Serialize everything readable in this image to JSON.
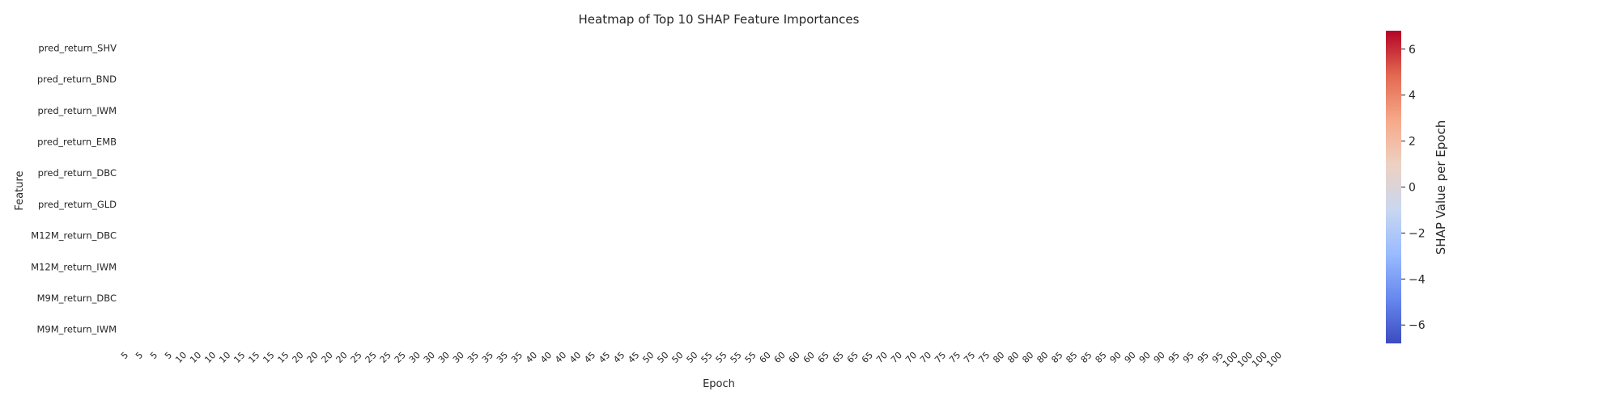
{
  "chart_data": {
    "type": "heatmap",
    "title": "Heatmap of Top 10 SHAP Feature Importances",
    "xlabel": "Epoch",
    "ylabel": "Feature",
    "features": [
      "pred_return_SHV",
      "pred_return_BND",
      "pred_return_IWM",
      "pred_return_EMB",
      "pred_return_DBC",
      "pred_return_GLD",
      "M12M_return_DBC",
      "M12M_return_IWM",
      "M9M_return_DBC",
      "M9M_return_IWM"
    ],
    "epochs": [
      "5",
      "5",
      "5",
      "5",
      "10",
      "10",
      "10",
      "10",
      "15",
      "15",
      "15",
      "15",
      "20",
      "20",
      "20",
      "20",
      "25",
      "25",
      "25",
      "25",
      "30",
      "30",
      "30",
      "30",
      "35",
      "35",
      "35",
      "35",
      "40",
      "40",
      "40",
      "40",
      "45",
      "45",
      "45",
      "45",
      "50",
      "50",
      "50",
      "50",
      "55",
      "55",
      "55",
      "55",
      "60",
      "60",
      "60",
      "60",
      "65",
      "65",
      "65",
      "65",
      "70",
      "70",
      "70",
      "70",
      "75",
      "75",
      "75",
      "75",
      "80",
      "80",
      "80",
      "80",
      "85",
      "85",
      "85",
      "85",
      "90",
      "90",
      "90",
      "90",
      "95",
      "95",
      "95",
      "95",
      "100",
      "100",
      "100",
      "100"
    ],
    "values_visible": false,
    "colorbar": {
      "label": "SHAP Value per Epoch",
      "colormap": "coolwarm",
      "range": [
        -6.8,
        6.8
      ],
      "ticks": [
        -6,
        -4,
        -2,
        0,
        2,
        4,
        6
      ],
      "tick_labels": [
        "−6",
        "−4",
        "−2",
        "0",
        "2",
        "4",
        "6"
      ],
      "colors": [
        "#3b4cc0",
        "#6788ee",
        "#9abbff",
        "#c9d7f0",
        "#edd1c2",
        "#f7a889",
        "#e26952",
        "#b40426"
      ]
    }
  }
}
